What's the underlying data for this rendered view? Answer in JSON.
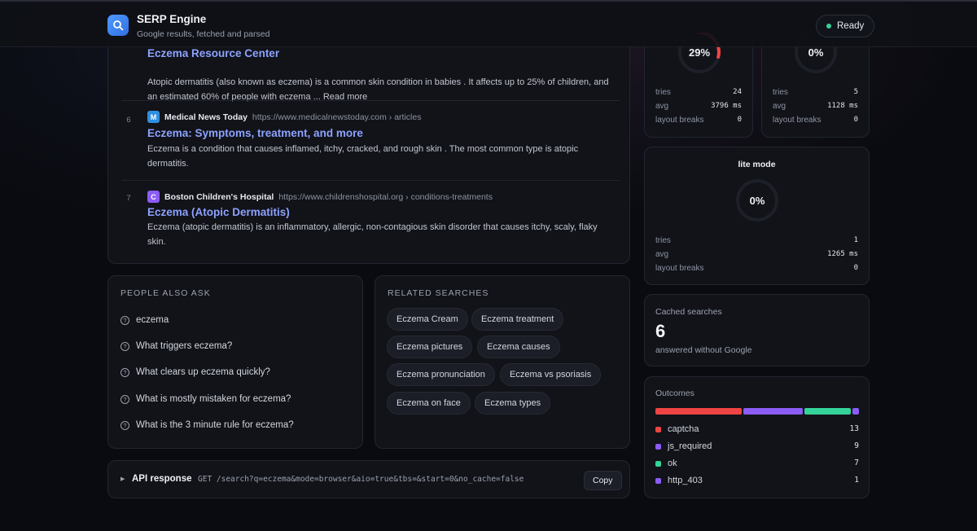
{
  "header": {
    "title": "SERP Engine",
    "subtitle": "Google results, fetched and parsed",
    "status": "Ready"
  },
  "results": [
    {
      "rank": "",
      "source_name": "",
      "source_url": "",
      "favicon_letter": "",
      "title": "Eczema Resource Center",
      "snippet": "Atopic dermatitis (also known as eczema) is a common skin condition in babies . It affects up to 25% of children, and an estimated 60% of people with eczema ... Read more"
    },
    {
      "rank": "6",
      "source_name": "Medical News Today",
      "source_url": "https://www.medicalnewstoday.com › articles",
      "favicon_letter": "M",
      "favicon_color": "#2f8fe0",
      "title": "Eczema: Symptoms, treatment, and more",
      "snippet": "Eczema is a condition that causes inflamed, itchy, cracked, and rough skin . The most common type is atopic dermatitis."
    },
    {
      "rank": "7",
      "source_name": "Boston Children's Hospital",
      "source_url": "https://www.childrenshospital.org › conditions-treatments",
      "favicon_letter": "C",
      "favicon_color": "#8b5cf6",
      "title": "Eczema (Atopic Dermatitis)",
      "snippet": "Eczema (atopic dermatitis) is an inflammatory, allergic, non-contagious skin disorder that causes itchy, scaly, flaky skin."
    }
  ],
  "people_also_ask": {
    "heading": "PEOPLE ALSO ASK",
    "questions": [
      "eczema",
      "What triggers eczema?",
      "What clears up eczema quickly?",
      "What is mostly mistaken for eczema?",
      "What is the 3 minute rule for eczema?"
    ]
  },
  "related_searches": {
    "heading": "RELATED SEARCHES",
    "chips": [
      "Eczema Cream",
      "Eczema treatment",
      "Eczema pictures",
      "Eczema causes",
      "Eczema pronunciation",
      "Eczema vs psoriasis",
      "Eczema on face",
      "Eczema types"
    ]
  },
  "api": {
    "label": "API response",
    "request": "GET /search?q=eczema&mode=browser&aio=true&tbs=&start=0&no_cache=false",
    "copy_label": "Copy"
  },
  "modes": [
    {
      "title": "",
      "percent": "29%",
      "fraction": 0.29,
      "tries_label": "tries",
      "tries": "24",
      "avg_label": "avg",
      "avg": "3796 ms",
      "breaks_label": "layout breaks",
      "breaks": "0"
    },
    {
      "title": "",
      "percent": "0%",
      "fraction": 0,
      "tries_label": "tries",
      "tries": "5",
      "avg_label": "avg",
      "avg": "1128 ms",
      "breaks_label": "layout breaks",
      "breaks": "0"
    },
    {
      "title": "lite mode",
      "percent": "0%",
      "fraction": 0,
      "tries_label": "tries",
      "tries": "1",
      "avg_label": "avg",
      "avg": "1265 ms",
      "breaks_label": "layout breaks",
      "breaks": "0"
    }
  ],
  "cached": {
    "label": "Cached searches",
    "value": "6",
    "sub": "answered without Google"
  },
  "outcomes": {
    "title": "Outcomes",
    "items": [
      {
        "label": "captcha",
        "count": "13",
        "value": 13,
        "color": "#ef4444"
      },
      {
        "label": "js_required",
        "count": "9",
        "value": 9,
        "color": "#8b5cf6"
      },
      {
        "label": "ok",
        "count": "7",
        "value": 7,
        "color": "#34d399"
      },
      {
        "label": "http_403",
        "count": "1",
        "value": 1,
        "color": "#8b5cf6"
      }
    ]
  },
  "colors": {
    "accent_link": "#8da2ff",
    "status_ok": "#34d399",
    "ring_active": "#ef4444"
  }
}
